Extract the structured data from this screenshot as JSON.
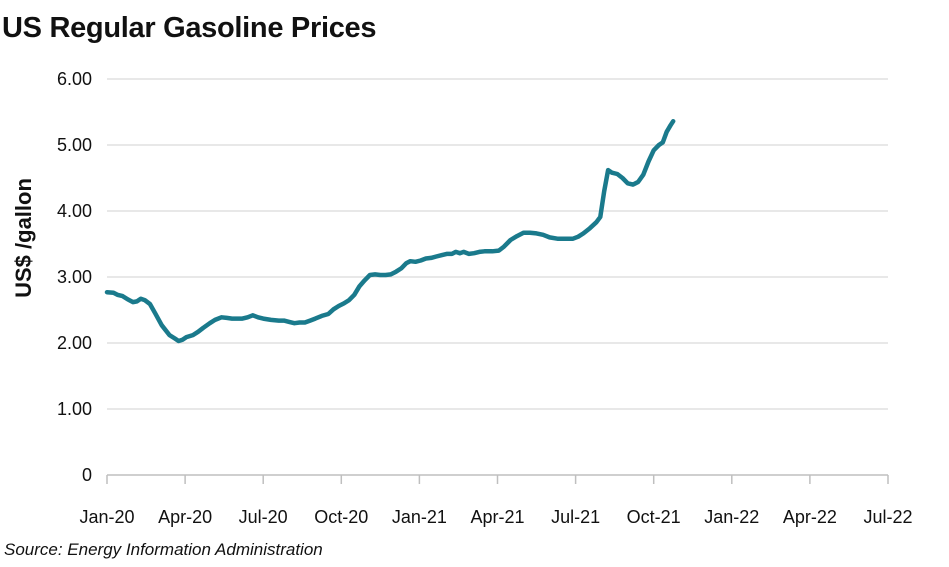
{
  "chart_data": {
    "type": "line",
    "title": "US Regular Gasoline Prices",
    "ylabel": "US$ /gallon",
    "xlabel": "",
    "source": "Source: Energy Information Administration",
    "ylim": [
      0,
      6
    ],
    "yticks": [
      "0",
      "1.00",
      "2.00",
      "3.00",
      "4.00",
      "5.00",
      "6.00"
    ],
    "xticks": [
      "Jan-20",
      "Apr-20",
      "Jul-20",
      "Oct-20",
      "Jan-21",
      "Apr-21",
      "Jul-21",
      "Oct-21",
      "Jan-22",
      "Apr-22",
      "Jul-22"
    ],
    "grid": true,
    "line_color": "#1a7a8c",
    "series": [
      {
        "values": [
          [
            0.0,
            2.77
          ],
          [
            0.25,
            2.76
          ],
          [
            0.4,
            2.73
          ],
          [
            0.6,
            2.71
          ],
          [
            0.8,
            2.66
          ],
          [
            1.0,
            2.62
          ],
          [
            1.15,
            2.63
          ],
          [
            1.3,
            2.67
          ],
          [
            1.45,
            2.65
          ],
          [
            1.65,
            2.59
          ],
          [
            1.85,
            2.45
          ],
          [
            2.1,
            2.27
          ],
          [
            2.4,
            2.12
          ],
          [
            2.6,
            2.07
          ],
          [
            2.75,
            2.03
          ],
          [
            2.9,
            2.05
          ],
          [
            3.05,
            2.09
          ],
          [
            3.3,
            2.12
          ],
          [
            3.5,
            2.17
          ],
          [
            3.7,
            2.23
          ],
          [
            3.95,
            2.3
          ],
          [
            4.15,
            2.35
          ],
          [
            4.4,
            2.39
          ],
          [
            4.6,
            2.38
          ],
          [
            4.8,
            2.37
          ],
          [
            5.0,
            2.37
          ],
          [
            5.2,
            2.37
          ],
          [
            5.4,
            2.39
          ],
          [
            5.6,
            2.42
          ],
          [
            5.8,
            2.39
          ],
          [
            6.0,
            2.37
          ],
          [
            6.3,
            2.35
          ],
          [
            6.6,
            2.34
          ],
          [
            6.8,
            2.34
          ],
          [
            7.0,
            2.32
          ],
          [
            7.2,
            2.3
          ],
          [
            7.4,
            2.31
          ],
          [
            7.6,
            2.31
          ],
          [
            7.8,
            2.34
          ],
          [
            8.0,
            2.37
          ],
          [
            8.25,
            2.41
          ],
          [
            8.5,
            2.44
          ],
          [
            8.7,
            2.51
          ],
          [
            8.9,
            2.56
          ],
          [
            9.1,
            2.6
          ],
          [
            9.3,
            2.65
          ],
          [
            9.5,
            2.73
          ],
          [
            9.7,
            2.86
          ],
          [
            9.9,
            2.95
          ],
          [
            10.1,
            3.03
          ],
          [
            10.3,
            3.04
          ],
          [
            10.5,
            3.03
          ],
          [
            10.7,
            3.03
          ],
          [
            10.9,
            3.04
          ],
          [
            11.1,
            3.08
          ],
          [
            11.3,
            3.13
          ],
          [
            11.5,
            3.21
          ],
          [
            11.65,
            3.24
          ],
          [
            11.85,
            3.23
          ],
          [
            12.05,
            3.25
          ],
          [
            12.25,
            3.28
          ],
          [
            12.45,
            3.29
          ],
          [
            12.65,
            3.31
          ],
          [
            12.85,
            3.33
          ],
          [
            13.05,
            3.35
          ],
          [
            13.25,
            3.35
          ],
          [
            13.4,
            3.38
          ],
          [
            13.55,
            3.36
          ],
          [
            13.7,
            3.38
          ],
          [
            13.9,
            3.35
          ],
          [
            14.1,
            3.36
          ],
          [
            14.3,
            3.38
          ],
          [
            14.5,
            3.39
          ],
          [
            14.8,
            3.39
          ],
          [
            15.05,
            3.4
          ],
          [
            15.25,
            3.46
          ],
          [
            15.5,
            3.56
          ],
          [
            15.75,
            3.62
          ],
          [
            16.0,
            3.67
          ],
          [
            16.25,
            3.67
          ],
          [
            16.5,
            3.66
          ],
          [
            16.75,
            3.64
          ],
          [
            17.0,
            3.6
          ],
          [
            17.3,
            3.58
          ],
          [
            17.6,
            3.58
          ],
          [
            17.9,
            3.58
          ],
          [
            18.1,
            3.61
          ],
          [
            18.3,
            3.66
          ],
          [
            18.55,
            3.74
          ],
          [
            18.8,
            3.83
          ],
          [
            18.95,
            3.91
          ],
          [
            19.1,
            4.3
          ],
          [
            19.25,
            4.62
          ],
          [
            19.4,
            4.58
          ],
          [
            19.6,
            4.56
          ],
          [
            19.8,
            4.5
          ],
          [
            20.0,
            4.42
          ],
          [
            20.2,
            4.4
          ],
          [
            20.4,
            4.44
          ],
          [
            20.6,
            4.55
          ],
          [
            20.8,
            4.75
          ],
          [
            21.0,
            4.92
          ],
          [
            21.2,
            5.0
          ],
          [
            21.35,
            5.04
          ],
          [
            21.5,
            5.2
          ],
          [
            21.65,
            5.3
          ],
          [
            21.75,
            5.36
          ]
        ]
      }
    ]
  }
}
